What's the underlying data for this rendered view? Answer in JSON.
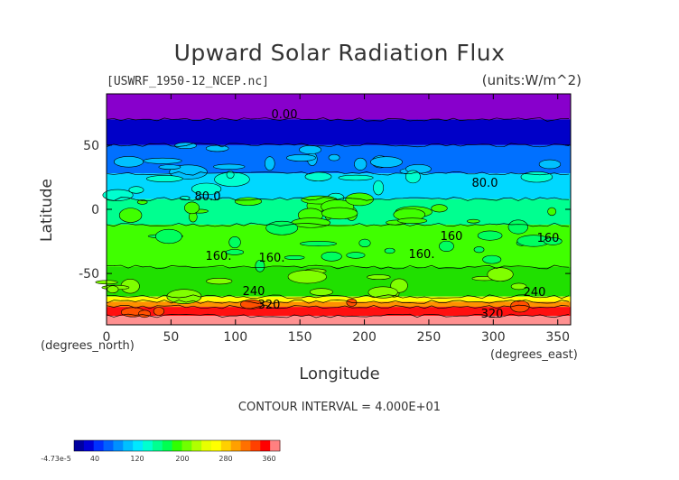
{
  "chart_data": {
    "type": "heatmap",
    "title": "Upward Solar Radiation Flux",
    "file_label": "[USWRF_1950-12_NCEP.nc]",
    "units_label": "(units:W/m^2)",
    "xlabel": "Longitude",
    "xunit": "(degrees_east)",
    "ylabel": "Latitude",
    "yunit": "(degrees_north)",
    "xlim": [
      0,
      360
    ],
    "ylim": [
      -90,
      90
    ],
    "x_ticks": [
      "0",
      "50",
      "100",
      "150",
      "200",
      "250",
      "300",
      "350"
    ],
    "y_ticks": [
      "50",
      "0",
      "-50"
    ],
    "contour_interval": "CONTOUR INTERVAL = 4.000E+01",
    "contour_labels": [
      "0.00",
      "80.0",
      "80.0",
      "160.",
      "160.",
      "160.",
      "160",
      "160",
      "240",
      "240",
      "320",
      "320"
    ],
    "colorbar": {
      "labels": [
        "-4.73e-5",
        "40",
        "120",
        "200",
        "280",
        "360"
      ],
      "colors": [
        "#0000a0",
        "#0000d8",
        "#0030ff",
        "#0060ff",
        "#0090ff",
        "#00c0ff",
        "#00e8ff",
        "#00ffd0",
        "#00ff90",
        "#00ff50",
        "#30ff00",
        "#70ff00",
        "#b0ff00",
        "#e8ff00",
        "#ffff00",
        "#ffd000",
        "#ffa000",
        "#ff7000",
        "#ff4000",
        "#ff0000",
        "#ff8080"
      ]
    },
    "bands": [
      {
        "lat_top": 90,
        "lat_bottom": 70,
        "color": "#8800cc"
      },
      {
        "lat_top": 70,
        "lat_bottom": 50,
        "color": "#0000c8"
      },
      {
        "lat_top": 50,
        "lat_bottom": 28,
        "color": "#0070ff"
      },
      {
        "lat_top": 28,
        "lat_bottom": 8,
        "color": "#00d8ff"
      },
      {
        "lat_top": 8,
        "lat_bottom": -12,
        "color": "#00ff90"
      },
      {
        "lat_top": -12,
        "lat_bottom": -45,
        "color": "#40ff00"
      },
      {
        "lat_top": -45,
        "lat_bottom": -68,
        "color": "#20e000"
      },
      {
        "lat_top": -68,
        "lat_bottom": -72,
        "color": "#ffff00"
      },
      {
        "lat_top": -72,
        "lat_bottom": -76,
        "color": "#ff9000"
      },
      {
        "lat_top": -76,
        "lat_bottom": -83,
        "color": "#ff1010"
      },
      {
        "lat_top": -83,
        "lat_bottom": -90,
        "color": "#ff9090"
      }
    ]
  }
}
